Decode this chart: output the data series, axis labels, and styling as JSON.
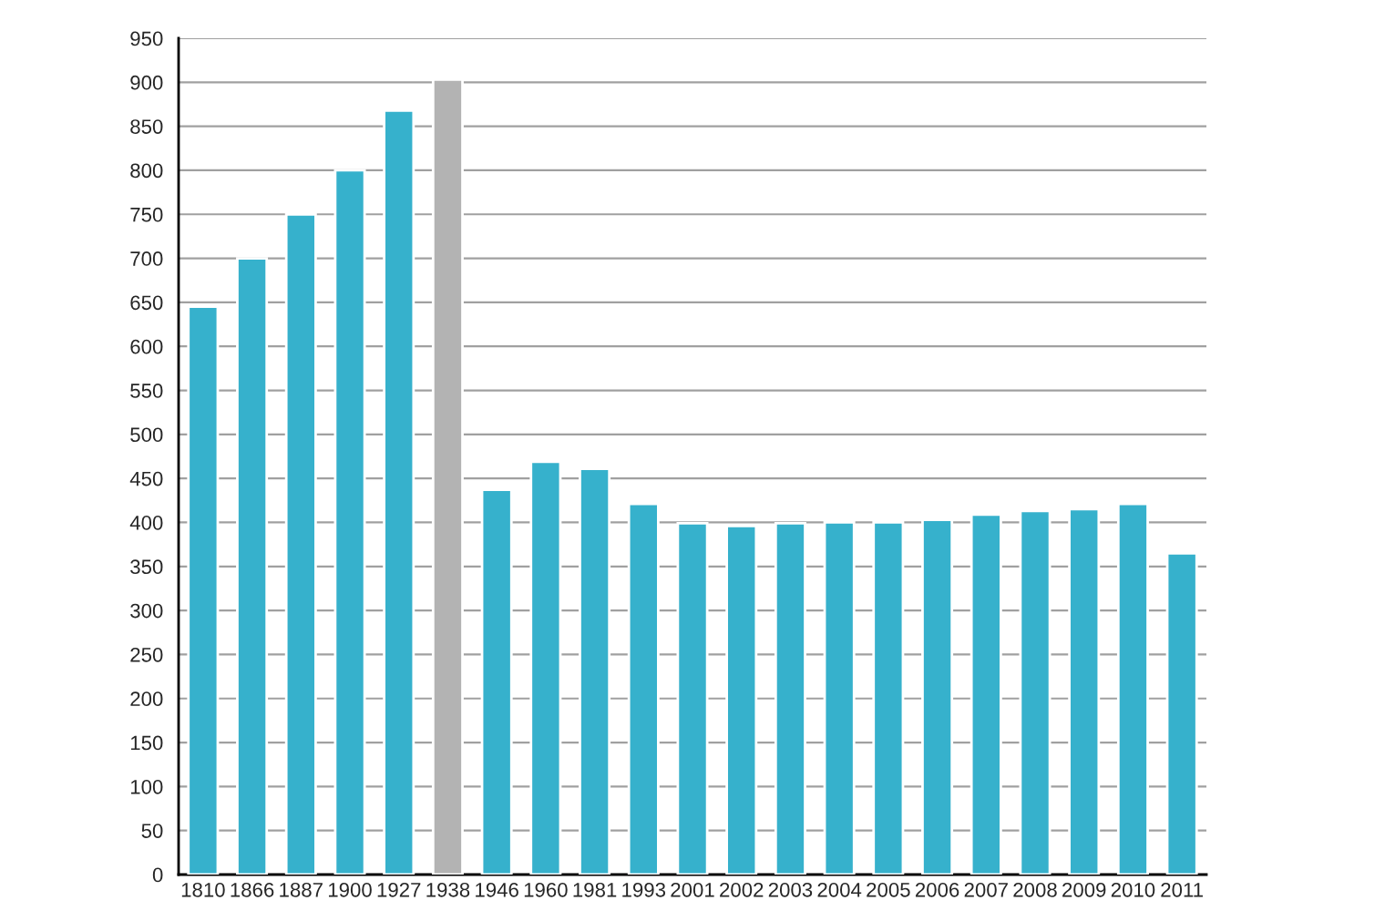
{
  "chart_data": {
    "type": "bar",
    "categories": [
      "1810",
      "1866",
      "1887",
      "1900",
      "1927",
      "1938",
      "1946",
      "1960",
      "1981",
      "1993",
      "2001",
      "2002",
      "2003",
      "2004",
      "2005",
      "2006",
      "2007",
      "2008",
      "2009",
      "2010",
      "2011"
    ],
    "values": [
      645,
      700,
      750,
      800,
      868,
      903,
      437,
      469,
      461,
      421,
      399,
      396,
      399,
      400,
      400,
      403,
      409,
      413,
      415,
      421,
      365
    ],
    "colors": [
      "#36b1cc",
      "#36b1cc",
      "#36b1cc",
      "#36b1cc",
      "#36b1cc",
      "#b3b3b3",
      "#36b1cc",
      "#36b1cc",
      "#36b1cc",
      "#36b1cc",
      "#36b1cc",
      "#36b1cc",
      "#36b1cc",
      "#36b1cc",
      "#36b1cc",
      "#36b1cc",
      "#36b1cc",
      "#36b1cc",
      "#36b1cc",
      "#36b1cc",
      "#36b1cc"
    ],
    "ylim": [
      0,
      950
    ],
    "yticks": [
      0,
      50,
      100,
      150,
      200,
      250,
      300,
      350,
      400,
      450,
      500,
      550,
      600,
      650,
      700,
      750,
      800,
      850,
      900,
      950
    ],
    "grid": "y",
    "legend": false
  }
}
